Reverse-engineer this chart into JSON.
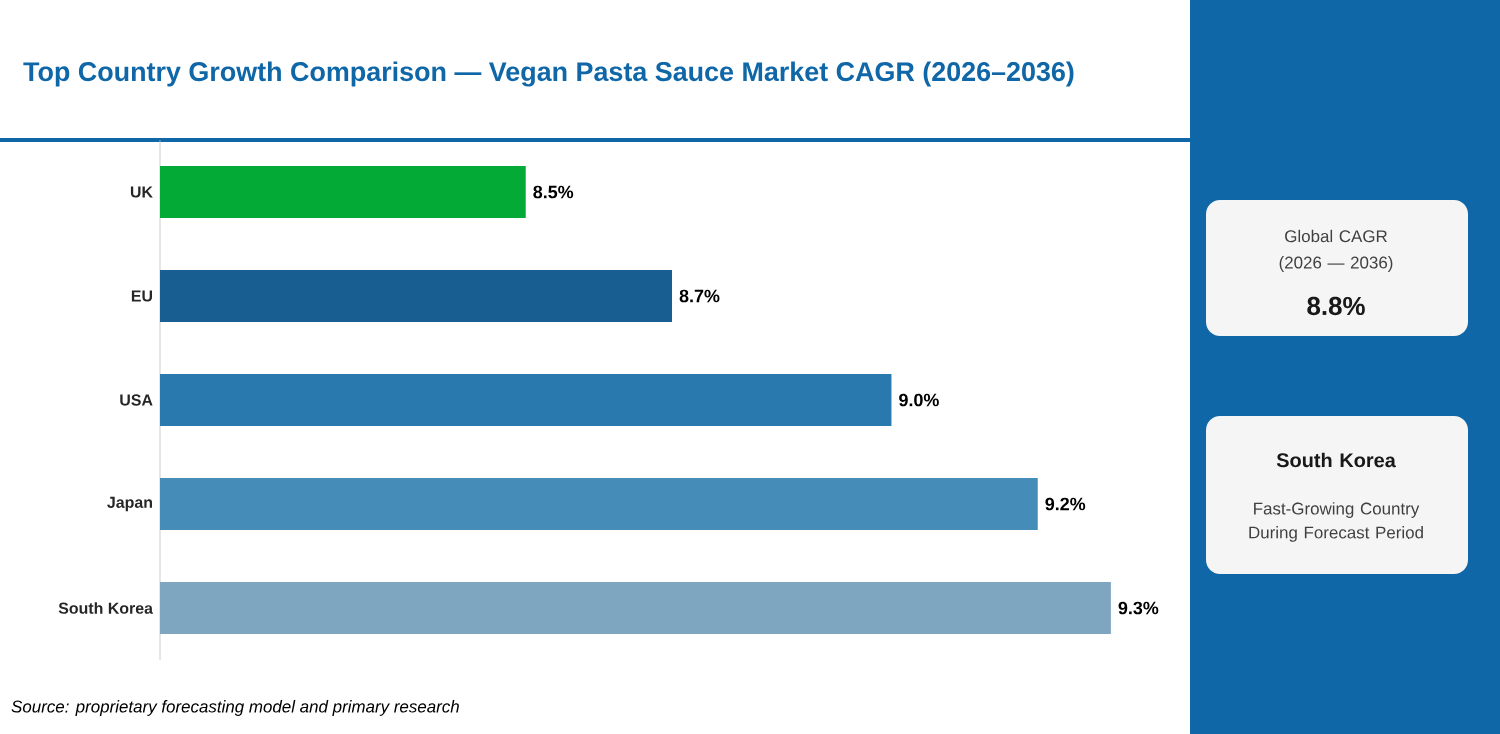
{
  "chart_data": {
    "type": "bar",
    "orientation": "horizontal",
    "title": "Top Country Growth Comparison — Vegan Pasta Sauce Market CAGR (2026–2036)",
    "categories": [
      "UK",
      "EU",
      "USA",
      "Japan",
      "South Korea"
    ],
    "values": [
      8.5,
      8.7,
      9.0,
      9.2,
      9.3
    ],
    "colors": [
      "#03aa35",
      "#195e91",
      "#2a79ae",
      "#468cb8",
      "#7fa6c1"
    ],
    "value_labels": [
      "8.5%",
      "8.7%",
      "9.0%",
      "9.2%",
      "9.3%"
    ],
    "xlim": [
      8,
      9.4
    ],
    "tick_labels": "y",
    "annotations": [
      "Global CAGR",
      "(2026 — 2036)",
      "8.8%",
      "South Korea",
      "Fast-Growing Country During Forecast Period",
      "Source: proprietary forecasting model and primary research"
    ]
  }
}
